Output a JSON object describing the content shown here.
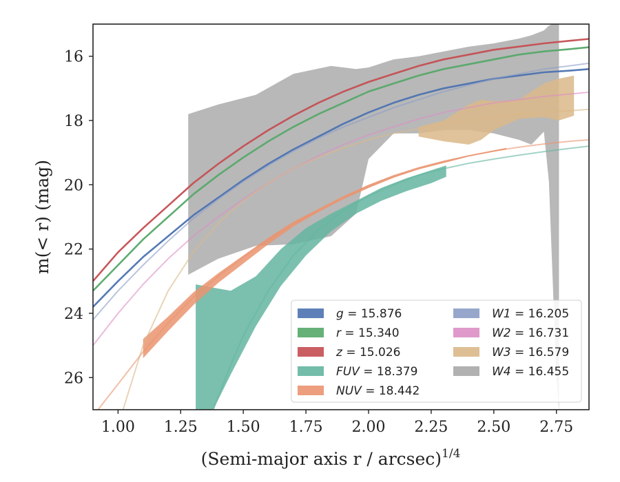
{
  "chart_data": {
    "type": "area",
    "xlabel": "(Semi-major axis r / arcsec)",
    "xlabel_sup": "1/4",
    "ylabel": "m(< r) (mag)",
    "xlim": [
      0.9,
      2.88
    ],
    "ylim": [
      27.0,
      15.0
    ],
    "y_inverted": true,
    "xticks": [
      1.0,
      1.25,
      1.5,
      1.75,
      2.0,
      2.25,
      2.5,
      2.75
    ],
    "xtick_labels": [
      "1.00",
      "1.25",
      "1.50",
      "1.75",
      "2.00",
      "2.25",
      "2.50",
      "2.75"
    ],
    "yticks": [
      16,
      18,
      20,
      22,
      24,
      26
    ],
    "ytick_labels": [
      "16",
      "18",
      "20",
      "22",
      "24",
      "26"
    ],
    "legend_position": "lower-right",
    "legend": [
      {
        "band": "g",
        "value": "15.876",
        "color": "#4c72b0"
      },
      {
        "band": "r",
        "value": "15.340",
        "color": "#55a868"
      },
      {
        "band": "z",
        "value": "15.026",
        "color": "#c44e52"
      },
      {
        "band": "FUV",
        "value": "18.379",
        "color": "#64b5a0"
      },
      {
        "band": "NUV",
        "value": "18.442",
        "color": "#ea9470"
      },
      {
        "band": "W1",
        "value": "16.205",
        "color": "#8c9dc6"
      },
      {
        "band": "W2",
        "value": "16.731",
        "color": "#dc8ec5"
      },
      {
        "band": "W3",
        "value": "16.579",
        "color": "#dab888"
      },
      {
        "band": "W4",
        "value": "16.455",
        "color": "#a8a8a8"
      }
    ],
    "series": [
      {
        "band": "g",
        "kind": "curve",
        "color": "#4c72b0",
        "x": [
          0.9,
          1.0,
          1.1,
          1.2,
          1.3,
          1.4,
          1.5,
          1.6,
          1.7,
          1.8,
          1.9,
          2.0,
          2.1,
          2.2,
          2.3,
          2.4,
          2.5,
          2.6,
          2.7,
          2.8,
          2.88
        ],
        "y": [
          23.8,
          23.0,
          22.25,
          21.6,
          20.95,
          20.4,
          19.85,
          19.35,
          18.9,
          18.5,
          18.1,
          17.75,
          17.45,
          17.2,
          17.0,
          16.85,
          16.7,
          16.6,
          16.5,
          16.45,
          16.4
        ]
      },
      {
        "band": "r",
        "kind": "curve",
        "color": "#55a868",
        "x": [
          0.9,
          1.0,
          1.1,
          1.2,
          1.3,
          1.4,
          1.5,
          1.6,
          1.7,
          1.8,
          1.9,
          2.0,
          2.1,
          2.2,
          2.3,
          2.4,
          2.5,
          2.6,
          2.7,
          2.8,
          2.88
        ],
        "y": [
          23.3,
          22.5,
          21.7,
          21.0,
          20.3,
          19.7,
          19.15,
          18.65,
          18.2,
          17.8,
          17.45,
          17.1,
          16.85,
          16.6,
          16.4,
          16.25,
          16.1,
          15.95,
          15.85,
          15.78,
          15.72
        ]
      },
      {
        "band": "z",
        "kind": "curve",
        "color": "#c44e52",
        "x": [
          0.9,
          1.0,
          1.1,
          1.2,
          1.3,
          1.4,
          1.5,
          1.6,
          1.7,
          1.8,
          1.9,
          2.0,
          2.1,
          2.2,
          2.3,
          2.4,
          2.5,
          2.6,
          2.7,
          2.8,
          2.88
        ],
        "y": [
          23.0,
          22.1,
          21.35,
          20.65,
          19.95,
          19.35,
          18.8,
          18.3,
          17.85,
          17.45,
          17.1,
          16.8,
          16.55,
          16.3,
          16.1,
          15.95,
          15.8,
          15.7,
          15.6,
          15.52,
          15.46
        ]
      },
      {
        "band": "W1",
        "kind": "curve",
        "color": "#8c9dc6",
        "x": [
          0.9,
          1.0,
          1.1,
          1.2,
          1.3,
          1.4,
          1.5,
          1.6,
          1.7,
          1.8,
          1.9,
          2.0,
          2.1,
          2.2,
          2.3,
          2.4,
          2.5,
          2.6,
          2.7,
          2.8,
          2.88
        ],
        "y": [
          24.2,
          23.3,
          22.5,
          21.75,
          21.05,
          20.45,
          19.9,
          19.4,
          18.95,
          18.55,
          18.2,
          17.9,
          17.6,
          17.35,
          17.1,
          16.9,
          16.7,
          16.55,
          16.4,
          16.3,
          16.22
        ]
      },
      {
        "band": "W2",
        "kind": "curve",
        "color": "#dc8ec5",
        "x": [
          0.9,
          1.0,
          1.1,
          1.2,
          1.3,
          1.4,
          1.5,
          1.6,
          1.7,
          1.8,
          1.9,
          2.0,
          2.1,
          2.2,
          2.3,
          2.4,
          2.5,
          2.6,
          2.7,
          2.8,
          2.88
        ],
        "y": [
          25.0,
          24.0,
          23.1,
          22.3,
          21.6,
          21.0,
          20.45,
          19.95,
          19.5,
          19.1,
          18.75,
          18.45,
          18.2,
          17.95,
          17.75,
          17.6,
          17.45,
          17.35,
          17.25,
          17.18,
          17.12
        ]
      },
      {
        "band": "W3",
        "kind": "curve",
        "color": "#dab888",
        "x": [
          1.02,
          1.1,
          1.2,
          1.3,
          1.4,
          1.5,
          1.6,
          1.7,
          1.8,
          1.9,
          2.0,
          2.1,
          2.2,
          2.3,
          2.4,
          2.5,
          2.6,
          2.7,
          2.8,
          2.88
        ],
        "y": [
          27.0,
          25.0,
          23.3,
          22.1,
          21.2,
          20.5,
          19.95,
          19.5,
          19.15,
          18.85,
          18.6,
          18.4,
          18.25,
          18.1,
          18.0,
          17.9,
          17.8,
          17.75,
          17.7,
          17.65
        ]
      },
      {
        "band": "NUV",
        "kind": "curve",
        "color": "#ea9470",
        "x": [
          0.9,
          1.0,
          1.1,
          1.2,
          1.3,
          1.4,
          1.5,
          1.6,
          1.7,
          1.8,
          1.9,
          2.0,
          2.1,
          2.2,
          2.3,
          2.4,
          2.5,
          2.6,
          2.7,
          2.8,
          2.88
        ],
        "y": [
          27.2,
          26.2,
          25.2,
          24.3,
          23.5,
          22.85,
          22.25,
          21.7,
          21.2,
          20.8,
          20.4,
          20.05,
          19.75,
          19.5,
          19.3,
          19.1,
          18.95,
          18.83,
          18.73,
          18.65,
          18.6
        ]
      },
      {
        "band": "FUV",
        "kind": "curve",
        "color": "#64b5a0",
        "x": [
          1.38,
          1.45,
          1.5,
          1.6,
          1.7,
          1.8,
          1.9,
          2.0,
          2.1,
          2.2,
          2.3,
          2.4,
          2.5,
          2.6,
          2.7,
          2.8,
          2.88
        ],
        "y": [
          27.0,
          25.6,
          24.7,
          23.3,
          22.2,
          21.4,
          20.8,
          20.35,
          20.0,
          19.7,
          19.5,
          19.33,
          19.2,
          19.08,
          18.97,
          18.87,
          18.8
        ]
      }
    ],
    "bands": [
      {
        "band": "W4",
        "kind": "range",
        "color": "#a8a8a8",
        "x": [
          1.28,
          1.4,
          1.55,
          1.7,
          1.85,
          1.95,
          2.0,
          2.1,
          2.2,
          2.3,
          2.4,
          2.5,
          2.6,
          2.65,
          2.7,
          2.72,
          2.75,
          2.76
        ],
        "y_upper": [
          17.8,
          17.5,
          17.2,
          16.55,
          16.3,
          16.4,
          16.35,
          16.1,
          16.0,
          15.85,
          15.7,
          15.6,
          15.45,
          15.35,
          15.2,
          15.05,
          14.95,
          14.95
        ],
        "y_lower": [
          22.8,
          22.3,
          21.9,
          21.85,
          21.6,
          20.9,
          19.2,
          18.4,
          18.4,
          18.3,
          18.3,
          18.4,
          18.6,
          18.75,
          18.35,
          19.9,
          26.0,
          27.0
        ]
      },
      {
        "band": "W3",
        "kind": "range",
        "color": "#dab888",
        "x": [
          2.2,
          2.3,
          2.4,
          2.45,
          2.5,
          2.6,
          2.7,
          2.76,
          2.82
        ],
        "y_upper": [
          18.2,
          18.0,
          17.5,
          17.35,
          17.4,
          17.35,
          16.85,
          16.7,
          16.6
        ],
        "y_lower": [
          18.5,
          18.65,
          18.75,
          18.6,
          18.3,
          17.95,
          17.9,
          18.0,
          17.85
        ]
      },
      {
        "band": "FUV",
        "kind": "range",
        "color": "#64b5a0",
        "x": [
          1.31,
          1.38,
          1.45,
          1.55,
          1.65,
          1.75,
          1.85,
          1.95,
          2.05,
          2.15,
          2.25,
          2.31
        ],
        "y_upper": [
          23.1,
          23.2,
          23.3,
          22.85,
          22.0,
          21.35,
          20.9,
          20.5,
          20.1,
          19.8,
          19.55,
          19.4
        ],
        "y_lower": [
          27.0,
          27.0,
          25.9,
          24.4,
          23.15,
          22.2,
          21.45,
          20.9,
          20.5,
          20.2,
          19.95,
          19.75
        ]
      },
      {
        "band": "NUV",
        "kind": "range",
        "color": "#ea9470",
        "x": [
          1.1,
          1.2,
          1.3,
          1.4,
          1.5,
          1.6,
          1.7,
          1.8,
          1.9,
          2.0,
          2.1,
          2.2,
          2.3,
          2.4,
          2.55
        ],
        "y_upper": [
          24.8,
          24.1,
          23.35,
          22.75,
          22.2,
          21.65,
          21.15,
          20.75,
          20.35,
          20.0,
          19.7,
          19.45,
          19.25,
          19.08,
          18.85
        ],
        "y_lower": [
          25.4,
          24.55,
          23.75,
          23.05,
          22.45,
          21.85,
          21.3,
          20.85,
          20.45,
          20.1,
          19.78,
          19.52,
          19.32,
          19.12,
          18.9
        ]
      }
    ],
    "grid": false
  }
}
